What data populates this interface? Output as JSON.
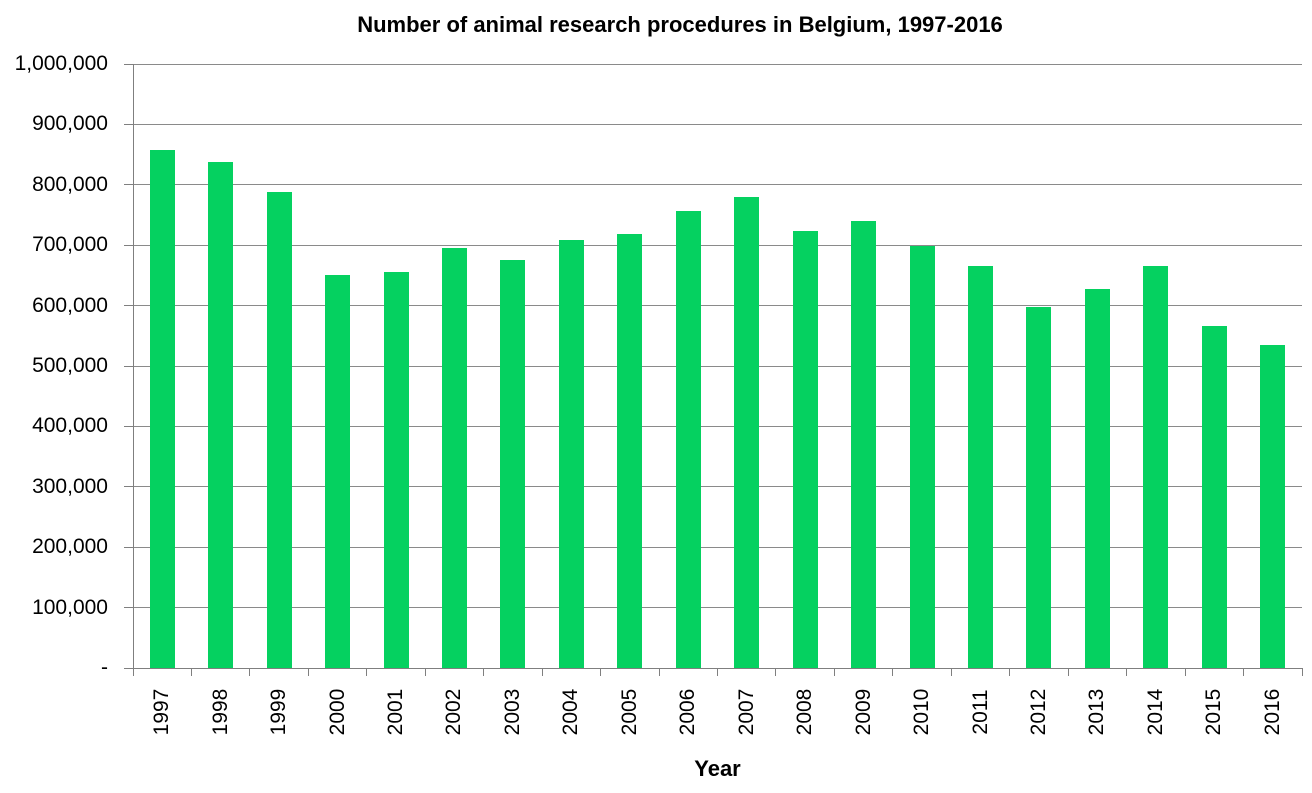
{
  "page": {
    "background": "#ffffff"
  },
  "chart_data": {
    "type": "bar",
    "title": "Number of animal research procedures in Belgium, 1997-2016",
    "xlabel": "Year",
    "ylabel": "",
    "categories": [
      "1997",
      "1998",
      "1999",
      "2000",
      "2001",
      "2002",
      "2003",
      "2004",
      "2005",
      "2006",
      "2007",
      "2008",
      "2009",
      "2010",
      "2011",
      "2012",
      "2013",
      "2014",
      "2015",
      "2016"
    ],
    "values": [
      858000,
      837000,
      788000,
      651000,
      655000,
      695000,
      676000,
      708000,
      718000,
      756000,
      779000,
      724000,
      740000,
      699000,
      665000,
      598000,
      628000,
      665000,
      566000,
      535000
    ],
    "ylim": [
      0,
      1000000
    ],
    "ytick_values": [
      0,
      100000,
      200000,
      300000,
      400000,
      500000,
      600000,
      700000,
      800000,
      900000,
      1000000
    ],
    "ytick_labels": [
      "-",
      "100,000",
      "200,000",
      "300,000",
      "400,000",
      "500,000",
      "600,000",
      "700,000",
      "800,000",
      "900,000",
      "1,000,000"
    ],
    "grid": true,
    "legend": "none",
    "bar_color": "#05d160",
    "gridline_color": "#8a8a8a",
    "axis_color": "#7f7f7f",
    "text_color": "#000000"
  }
}
